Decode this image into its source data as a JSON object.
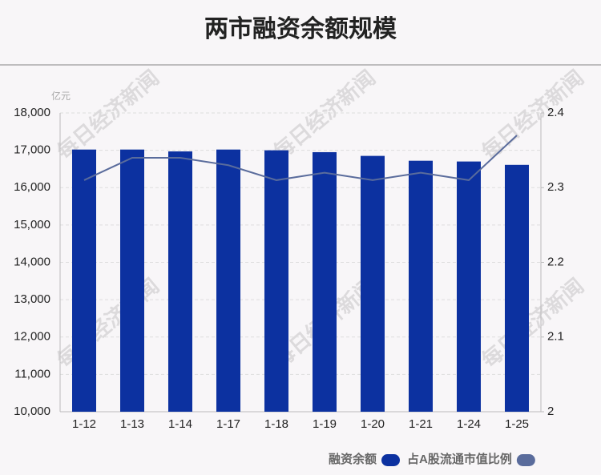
{
  "chart_data": {
    "type": "bar_line",
    "title": "两市融资余额规模",
    "unit": "亿元",
    "watermark": "每日经济新闻",
    "categories": [
      "1-12",
      "1-13",
      "1-14",
      "1-17",
      "1-18",
      "1-19",
      "1-20",
      "1-21",
      "1-24",
      "1-25"
    ],
    "series": [
      {
        "name": "融资余额",
        "color": "#0c31a0",
        "type": "bar",
        "values": [
          17020,
          17020,
          16970,
          17020,
          17000,
          16950,
          16850,
          16720,
          16700,
          16610
        ]
      },
      {
        "name": "占A股流通市值比例",
        "color": "#5a6c9c",
        "type": "line",
        "axis": "y2",
        "values": [
          2.31,
          2.34,
          2.34,
          2.33,
          2.31,
          2.32,
          2.31,
          2.32,
          2.31,
          2.37
        ]
      }
    ],
    "ylim": [
      10000,
      18000
    ],
    "yticks": [
      {
        "value": 10000,
        "label": "10,000"
      },
      {
        "value": 11000,
        "label": "11,000"
      },
      {
        "value": 12000,
        "label": "12,000"
      },
      {
        "value": 13000,
        "label": "13,000"
      },
      {
        "value": 14000,
        "label": "14,000"
      },
      {
        "value": 15000,
        "label": "15,000"
      },
      {
        "value": 16000,
        "label": "16,000"
      },
      {
        "value": 17000,
        "label": "17,000"
      },
      {
        "value": 18000,
        "label": "18,000"
      }
    ],
    "y2lim": [
      2,
      2.4
    ],
    "y2ticks": [
      2,
      2.1,
      2.2,
      2.3,
      2.4
    ],
    "grid": true,
    "legend": "bottom"
  }
}
